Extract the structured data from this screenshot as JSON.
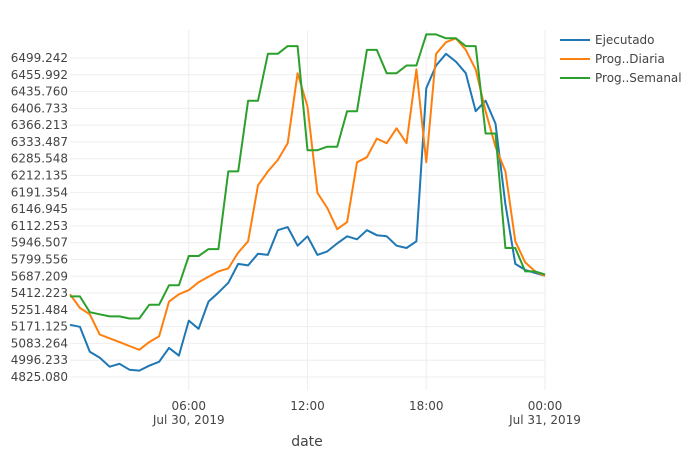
{
  "chart_data": {
    "type": "line",
    "xlabel": "date",
    "x_ticks": [
      {
        "hour": 6,
        "label": "06:00",
        "sublabel": "Jul 30, 2019"
      },
      {
        "hour": 12,
        "label": "12:00",
        "sublabel": ""
      },
      {
        "hour": 18,
        "label": "18:00",
        "sublabel": ""
      },
      {
        "hour": 24,
        "label": "00:00",
        "sublabel": "Jul 31, 2019"
      }
    ],
    "x_range": [
      0,
      24
    ],
    "y_ticks": [
      "4825.080",
      "4996.233",
      "5083.264",
      "5171.125",
      "5251.484",
      "5412.223",
      "5687.209",
      "5799.556",
      "5946.507",
      "6112.253",
      "6146.945",
      "6191.354",
      "6212.135",
      "6285.548",
      "6333.487",
      "6366.213",
      "6406.733",
      "6435.760",
      "6455.992",
      "6499.242"
    ],
    "grid": true,
    "legend_position": "top-right",
    "series": [
      {
        "name": "Ejecutado",
        "color": "#1f77b4",
        "x": [
          0,
          0.5,
          1,
          1.5,
          2,
          2.5,
          3,
          3.5,
          4,
          4.5,
          5,
          5.5,
          6,
          6.5,
          7,
          7.5,
          8,
          8.5,
          9,
          9.5,
          10,
          10.5,
          11,
          11.5,
          12,
          12.5,
          13,
          13.5,
          14,
          14.5,
          15,
          15.5,
          16,
          16.5,
          17,
          17.5,
          18,
          18.5,
          19,
          19.5,
          20,
          20.5,
          21,
          21.5,
          22,
          22.5,
          23,
          23.5,
          24
        ],
        "y": [
          5180,
          5170,
          5040,
          5010,
          4930,
          4960,
          4900,
          4890,
          4940,
          4980,
          5060,
          5020,
          5200,
          5160,
          5330,
          5420,
          5580,
          5770,
          5760,
          5850,
          5840,
          6070,
          6100,
          5920,
          6010,
          5840,
          5870,
          5940,
          6010,
          5980,
          6070,
          6020,
          6010,
          5920,
          5900,
          5960,
          6440,
          6480,
          6510,
          6490,
          6460,
          6400,
          6420,
          6370,
          6160,
          5770,
          5730,
          5710,
          5690
        ]
      },
      {
        "name": "Prog..Diaria",
        "color": "#ff7f0e",
        "x": [
          0,
          0.5,
          1,
          1.5,
          2,
          2.5,
          3,
          3.5,
          4,
          4.5,
          5,
          5.5,
          6,
          6.5,
          7,
          7.5,
          8,
          8.5,
          9,
          9.5,
          10,
          10.5,
          11,
          11.5,
          12,
          12.5,
          13,
          13.5,
          14,
          14.5,
          15,
          15.5,
          16,
          16.5,
          17,
          17.5,
          18,
          18.5,
          19,
          19.5,
          20,
          20.5,
          21,
          21.5,
          22,
          22.5,
          23,
          23.5,
          24
        ],
        "y": [
          5400,
          5270,
          5230,
          5130,
          5110,
          5090,
          5070,
          5050,
          5090,
          5120,
          5330,
          5400,
          5460,
          5590,
          5680,
          5720,
          5740,
          5860,
          5960,
          6200,
          6230,
          6280,
          6330,
          6460,
          6410,
          6190,
          6150,
          6080,
          6120,
          6270,
          6290,
          6340,
          6330,
          6360,
          6330,
          6470,
          6270,
          6510,
          6540,
          6550,
          6520,
          6470,
          6400,
          6320,
          6230,
          5960,
          5780,
          5720,
          5690
        ]
      },
      {
        "name": "Prog..Semanal",
        "color": "#2ca02c",
        "x": [
          0,
          0.5,
          1,
          1.5,
          2,
          2.5,
          3,
          3.5,
          4,
          4.5,
          5,
          5.5,
          6,
          6.5,
          7,
          7.5,
          8,
          8.5,
          9,
          9.5,
          10,
          10.5,
          11,
          11.5,
          12,
          12.5,
          13,
          13.5,
          14,
          14.5,
          15,
          15.5,
          16,
          16.5,
          17,
          17.5,
          18,
          18.5,
          19,
          19.5,
          20,
          20.5,
          21,
          21.5,
          22,
          22.5,
          23,
          23.5,
          24
        ],
        "y": [
          5380,
          5380,
          5240,
          5230,
          5220,
          5220,
          5210,
          5210,
          5300,
          5300,
          5540,
          5540,
          5830,
          5830,
          5890,
          5890,
          6230,
          6230,
          6420,
          6420,
          6510,
          6510,
          6530,
          6530,
          6310,
          6310,
          6320,
          6320,
          6400,
          6400,
          6520,
          6520,
          6460,
          6460,
          6480,
          6480,
          6560,
          6560,
          6550,
          6550,
          6530,
          6530,
          6350,
          6350,
          5900,
          5900,
          5720,
          5720,
          5700
        ]
      }
    ]
  }
}
